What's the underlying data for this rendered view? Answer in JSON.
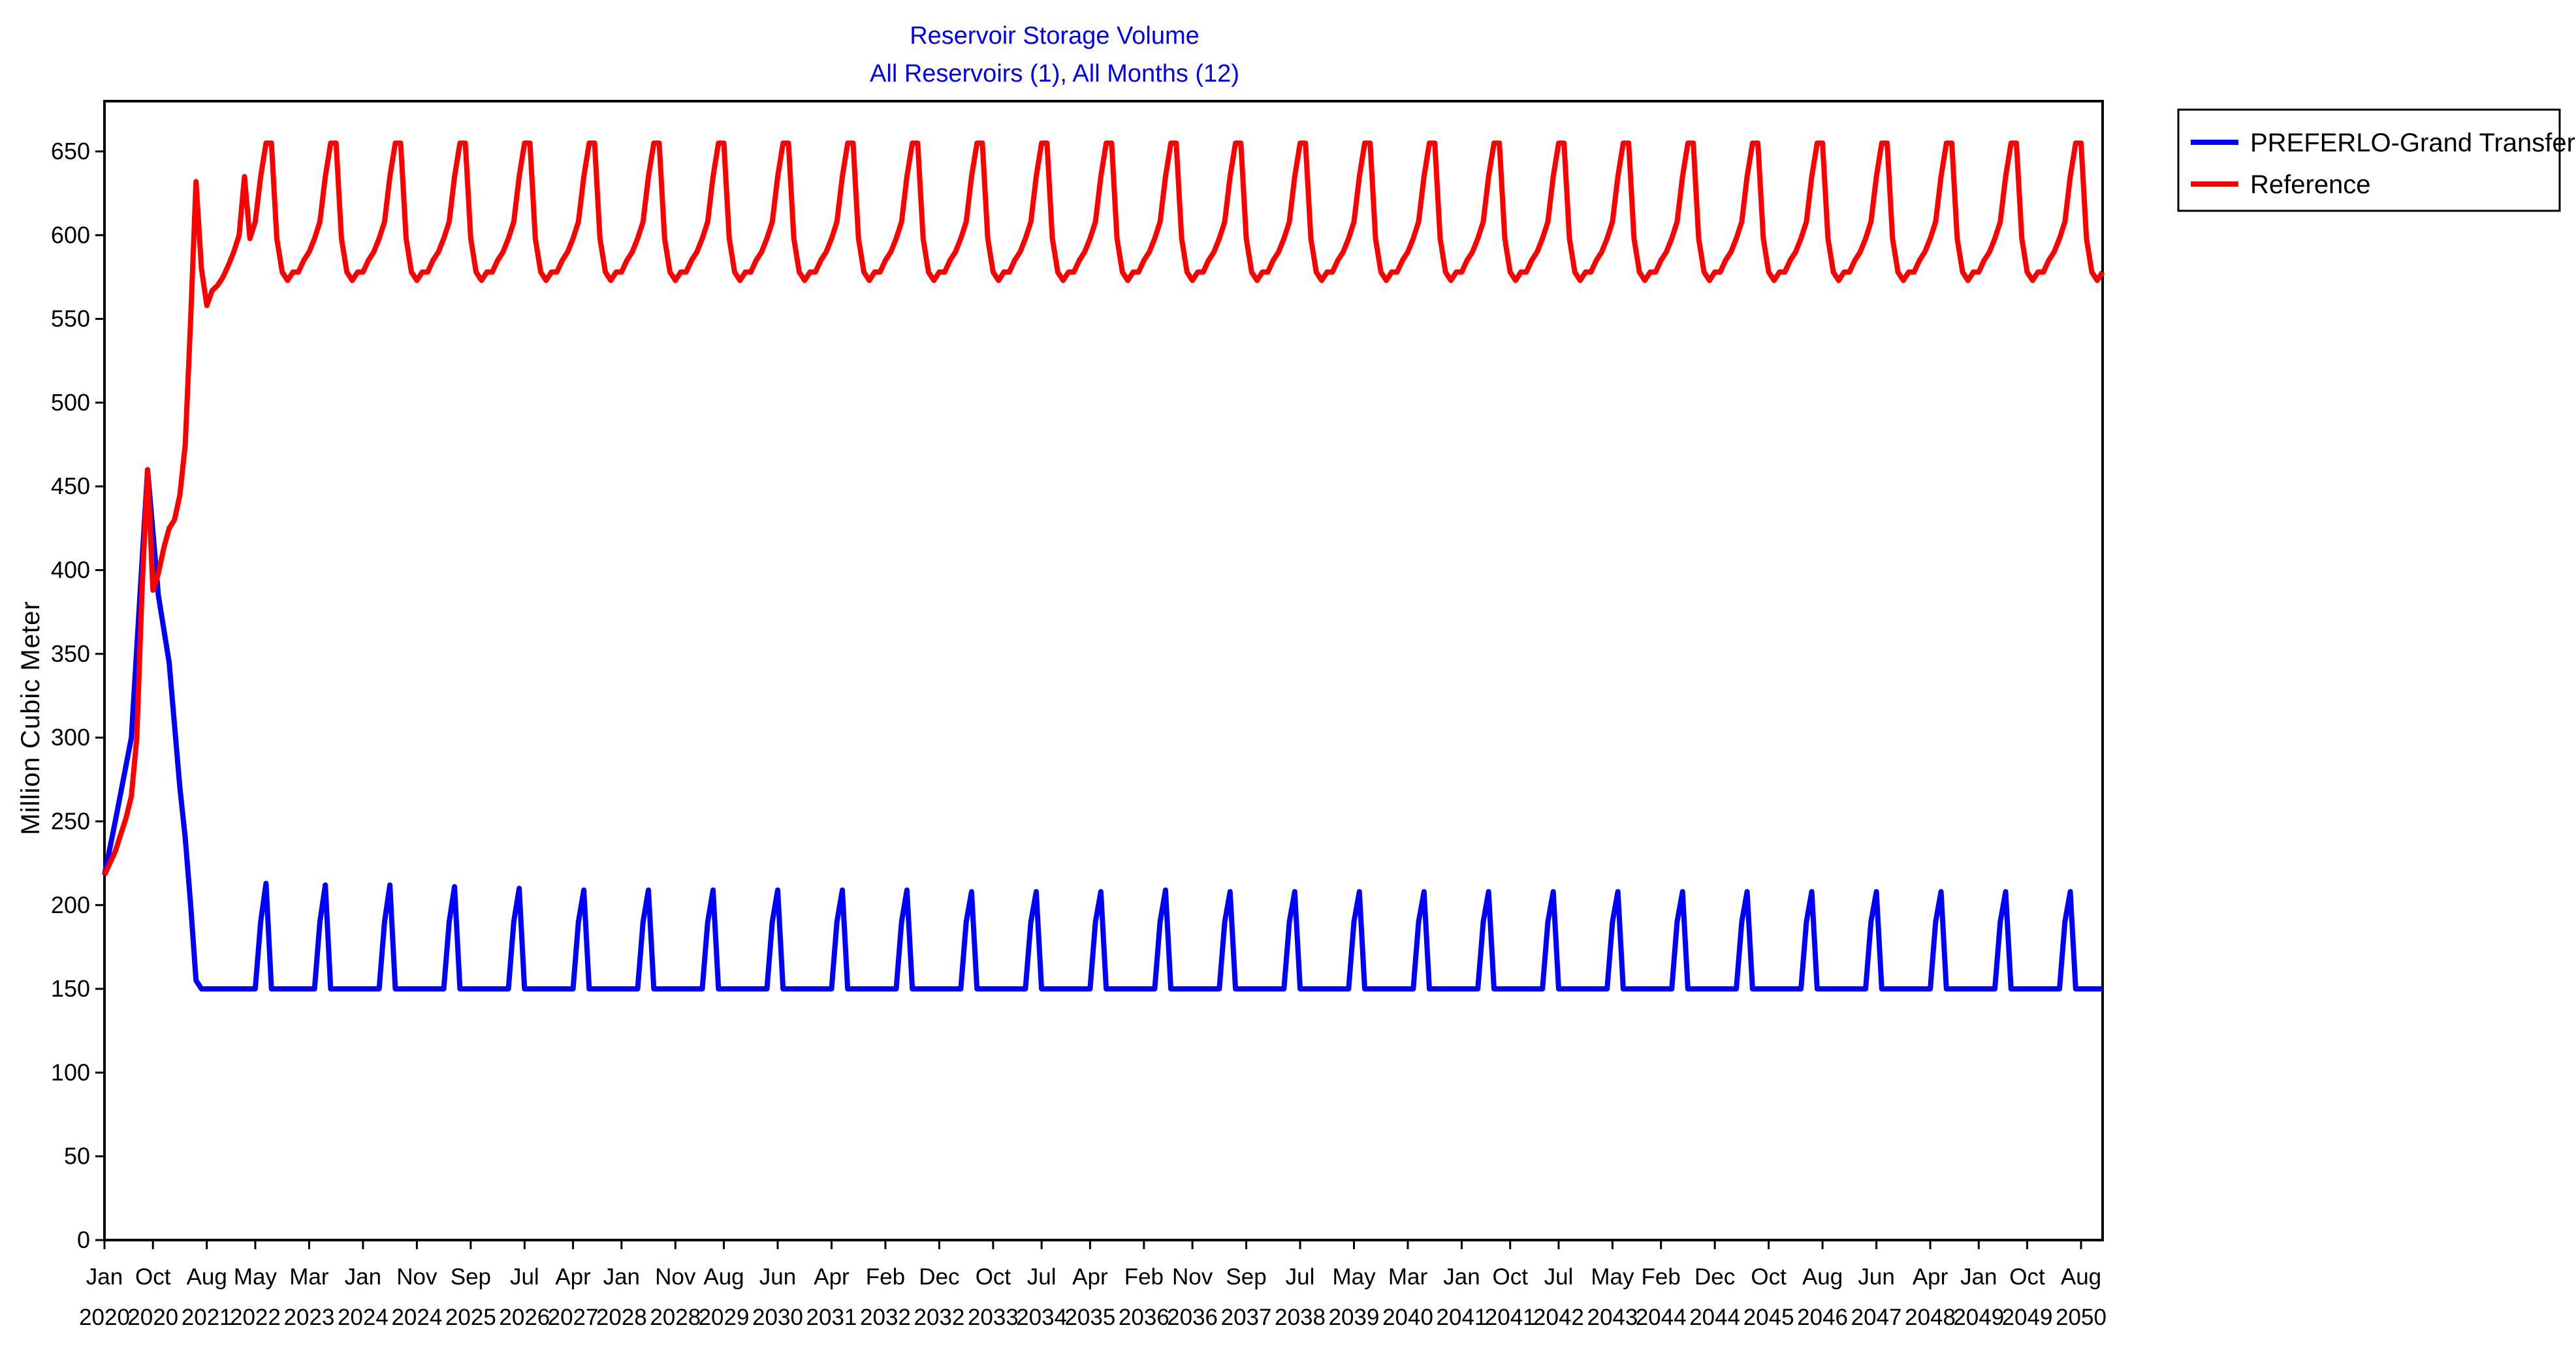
{
  "chart_data": {
    "type": "line",
    "title": "Reservoir Storage Volume",
    "subtitle": "All Reservoirs (1),  All Months (12)",
    "xlabel": "",
    "ylabel": "Million Cubic Meter",
    "ylim": [
      0,
      680
    ],
    "yticks": [
      0,
      50,
      100,
      150,
      200,
      250,
      300,
      350,
      400,
      450,
      500,
      550,
      600,
      650
    ],
    "xlim": [
      "2020-01",
      "2050-12"
    ],
    "x_ticks": [
      {
        "month": "Jan",
        "year": "2020",
        "date": "2020-01"
      },
      {
        "month": "Oct",
        "year": "2020",
        "date": "2020-10"
      },
      {
        "month": "Aug",
        "year": "2021",
        "date": "2021-08"
      },
      {
        "month": "May",
        "year": "2022",
        "date": "2022-05"
      },
      {
        "month": "Mar",
        "year": "2023",
        "date": "2023-03"
      },
      {
        "month": "Jan",
        "year": "2024",
        "date": "2024-01"
      },
      {
        "month": "Nov",
        "year": "2024",
        "date": "2024-11"
      },
      {
        "month": "Sep",
        "year": "2025",
        "date": "2025-09"
      },
      {
        "month": "Jul",
        "year": "2026",
        "date": "2026-07"
      },
      {
        "month": "Apr",
        "year": "2027",
        "date": "2027-04"
      },
      {
        "month": "Jan",
        "year": "2028",
        "date": "2028-01"
      },
      {
        "month": "Nov",
        "year": "2028",
        "date": "2028-11"
      },
      {
        "month": "Aug",
        "year": "2029",
        "date": "2029-08"
      },
      {
        "month": "Jun",
        "year": "2030",
        "date": "2030-06"
      },
      {
        "month": "Apr",
        "year": "2031",
        "date": "2031-04"
      },
      {
        "month": "Feb",
        "year": "2032",
        "date": "2032-02"
      },
      {
        "month": "Dec",
        "year": "2032",
        "date": "2032-12"
      },
      {
        "month": "Oct",
        "year": "2033",
        "date": "2033-10"
      },
      {
        "month": "Jul",
        "year": "2034",
        "date": "2034-07"
      },
      {
        "month": "Apr",
        "year": "2035",
        "date": "2035-04"
      },
      {
        "month": "Feb",
        "year": "2036",
        "date": "2036-02"
      },
      {
        "month": "Nov",
        "year": "2036",
        "date": "2036-11"
      },
      {
        "month": "Sep",
        "year": "2037",
        "date": "2037-09"
      },
      {
        "month": "Jul",
        "year": "2038",
        "date": "2038-07"
      },
      {
        "month": "May",
        "year": "2039",
        "date": "2039-05"
      },
      {
        "month": "Mar",
        "year": "2040",
        "date": "2040-03"
      },
      {
        "month": "Jan",
        "year": "2041",
        "date": "2041-01"
      },
      {
        "month": "Oct",
        "year": "2041",
        "date": "2041-10"
      },
      {
        "month": "Jul",
        "year": "2042",
        "date": "2042-07"
      },
      {
        "month": "May",
        "year": "2043",
        "date": "2043-05"
      },
      {
        "month": "Feb",
        "year": "2044",
        "date": "2044-02"
      },
      {
        "month": "Dec",
        "year": "2044",
        "date": "2044-12"
      },
      {
        "month": "Oct",
        "year": "2045",
        "date": "2045-10"
      },
      {
        "month": "Aug",
        "year": "2046",
        "date": "2046-08"
      },
      {
        "month": "Jun",
        "year": "2047",
        "date": "2047-06"
      },
      {
        "month": "Apr",
        "year": "2048",
        "date": "2048-04"
      },
      {
        "month": "Jan",
        "year": "2049",
        "date": "2049-01"
      },
      {
        "month": "Oct",
        "year": "2049",
        "date": "2049-10"
      },
      {
        "month": "Aug",
        "year": "2050",
        "date": "2050-08"
      }
    ],
    "grid": false,
    "legend_position": "outside top-right",
    "series": [
      {
        "name": "PREFERLO-Grand Transfer",
        "color": "#0000ff",
        "x": [
          "2020-01",
          "2020-03",
          "2020-06",
          "2020-09",
          "2020-11",
          "2021-01",
          "2021-03",
          "2021-04",
          "2021-05",
          "2021-06",
          "2021-07",
          "2021-08",
          "2022-05",
          "2022-06",
          "2022-07",
          "2022-08",
          "2023-04",
          "2023-05",
          "2023-06",
          "2023-07",
          "2024-04",
          "2024-05",
          "2024-06",
          "2024-07",
          "2025-04",
          "2025-05",
          "2025-06",
          "2025-07",
          "2026-04",
          "2026-05",
          "2026-06",
          "2026-07",
          "2027-04",
          "2027-05",
          "2027-06",
          "2027-07",
          "2028-04",
          "2028-05",
          "2028-06",
          "2028-07",
          "2029-04",
          "2029-05",
          "2029-06",
          "2029-07",
          "2030-04",
          "2030-05",
          "2030-06",
          "2030-07",
          "2031-04",
          "2031-05",
          "2031-06",
          "2031-07",
          "2032-04",
          "2032-05",
          "2032-06",
          "2032-07",
          "2033-04",
          "2033-05",
          "2033-06",
          "2033-07",
          "2034-04",
          "2034-05",
          "2034-06",
          "2034-07",
          "2035-04",
          "2035-05",
          "2035-06",
          "2035-07",
          "2036-04",
          "2036-05",
          "2036-06",
          "2036-07",
          "2037-04",
          "2037-05",
          "2037-06",
          "2037-07",
          "2038-04",
          "2038-05",
          "2038-06",
          "2038-07",
          "2039-04",
          "2039-05",
          "2039-06",
          "2039-07",
          "2040-04",
          "2040-05",
          "2040-06",
          "2040-07",
          "2041-04",
          "2041-05",
          "2041-06",
          "2041-07",
          "2042-04",
          "2042-05",
          "2042-06",
          "2042-07",
          "2043-04",
          "2043-05",
          "2043-06",
          "2043-07",
          "2044-04",
          "2044-05",
          "2044-06",
          "2044-07",
          "2045-04",
          "2045-05",
          "2045-06",
          "2045-07",
          "2046-04",
          "2046-05",
          "2046-06",
          "2046-07",
          "2047-04",
          "2047-05",
          "2047-06",
          "2047-07",
          "2048-04",
          "2048-05",
          "2048-06",
          "2048-07",
          "2049-04",
          "2049-05",
          "2049-06",
          "2049-07",
          "2050-04",
          "2050-05",
          "2050-06",
          "2050-07",
          "2050-12"
        ],
        "values": [
          218,
          250,
          300,
          460,
          385,
          345,
          270,
          240,
          200,
          155,
          150,
          150,
          150,
          190,
          213,
          150,
          150,
          190,
          212,
          150,
          150,
          190,
          212,
          150,
          150,
          190,
          211,
          150,
          150,
          190,
          210,
          150,
          150,
          190,
          209,
          150,
          150,
          190,
          209,
          150,
          150,
          190,
          209,
          150,
          150,
          190,
          209,
          150,
          150,
          190,
          209,
          150,
          150,
          190,
          209,
          150,
          150,
          190,
          208,
          150,
          150,
          190,
          208,
          150,
          150,
          190,
          208,
          150,
          150,
          190,
          209,
          150,
          150,
          190,
          208,
          150,
          150,
          190,
          208,
          150,
          150,
          190,
          208,
          150,
          150,
          190,
          208,
          150,
          150,
          190,
          208,
          150,
          150,
          190,
          208,
          150,
          150,
          190,
          208,
          150,
          150,
          190,
          208,
          150,
          150,
          190,
          208,
          150,
          150,
          190,
          208,
          150,
          150,
          190,
          208,
          150,
          150,
          190,
          208,
          150,
          150,
          190,
          208,
          150,
          150,
          190,
          208,
          150,
          150
        ]
      },
      {
        "name": "Reference",
        "color": "#ff0000",
        "anchor_x": [
          "2020-01",
          "2020-03",
          "2020-05",
          "2020-06",
          "2020-07",
          "2020-08",
          "2020-09",
          "2020-10",
          "2020-11",
          "2020-12",
          "2021-01",
          "2021-02",
          "2021-03",
          "2021-04",
          "2021-05",
          "2021-06",
          "2021-07",
          "2021-08",
          "2021-09",
          "2021-10",
          "2021-11",
          "2021-12",
          "2022-01",
          "2022-02",
          "2022-03"
        ],
        "anchor_values": [
          218,
          232,
          252,
          265,
          300,
          390,
          460,
          388,
          398,
          413,
          425,
          430,
          445,
          475,
          550,
          632,
          580,
          558,
          567,
          570,
          575,
          582,
          590,
          600,
          635
        ],
        "cycle_start": "2022-04",
        "cycle_end": "2050-12",
        "annual_profile_by_month": [
          578,
          585,
          590,
          598,
          608,
          635,
          655,
          655,
          598,
          578,
          573,
          578
        ],
        "peak_month": 7
      }
    ]
  }
}
